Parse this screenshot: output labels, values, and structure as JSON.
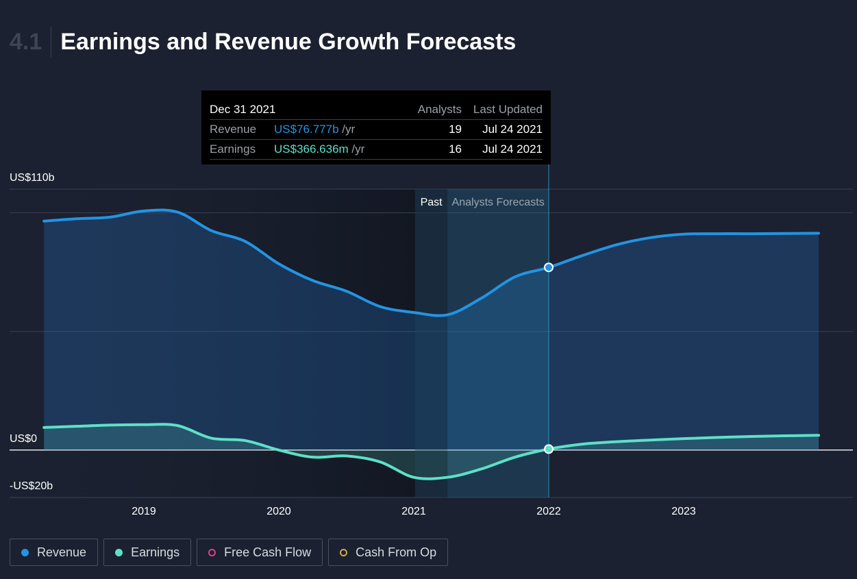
{
  "header": {
    "section_number": "4.1",
    "title": "Earnings and Revenue Growth Forecasts"
  },
  "tooltip": {
    "date": "Dec 31 2021",
    "col_analysts": "Analysts",
    "col_updated": "Last Updated",
    "rows": [
      {
        "label": "Revenue",
        "value": "US$76.777b",
        "unit": "/yr",
        "analysts": "19",
        "updated": "Jul 24 2021",
        "color": "#2394e3"
      },
      {
        "label": "Earnings",
        "value": "US$366.636m",
        "unit": "/yr",
        "analysts": "16",
        "updated": "Jul 24 2021",
        "color": "#5ee0c8"
      }
    ]
  },
  "period_labels": {
    "past": "Past",
    "forecast": "Analysts Forecasts"
  },
  "legend": [
    {
      "label": "Revenue",
      "color": "#2394e3",
      "filled": true
    },
    {
      "label": "Earnings",
      "color": "#5ee0c8",
      "filled": true
    },
    {
      "label": "Free Cash Flow",
      "color": "#d9418e",
      "filled": false
    },
    {
      "label": "Cash From Op",
      "color": "#d6a84a",
      "filled": false
    }
  ],
  "chart_data": {
    "type": "area",
    "y_unit": "US$ billions",
    "ylim": [
      -20,
      110
    ],
    "y_tick_labels": [
      {
        "value": 110,
        "label": "US$110b"
      },
      {
        "value": 0,
        "label": "US$0"
      },
      {
        "value": -20,
        "label": "-US$20b"
      }
    ],
    "x_tick_labels": [
      "2019",
      "2020",
      "2021",
      "2022",
      "2023"
    ],
    "xlim": [
      2018.25,
      2024.25
    ],
    "past_end": 2021.25,
    "highlight_x": 2022.0,
    "series": [
      {
        "name": "Revenue",
        "color": "#2394e3",
        "points": [
          [
            2018.26,
            96.5
          ],
          [
            2018.5,
            97.5
          ],
          [
            2018.75,
            98.2
          ],
          [
            2019.0,
            100.8
          ],
          [
            2019.25,
            100.3
          ],
          [
            2019.5,
            92.5
          ],
          [
            2019.75,
            88.0
          ],
          [
            2020.0,
            78.5
          ],
          [
            2020.25,
            71.5
          ],
          [
            2020.5,
            67.0
          ],
          [
            2020.75,
            60.5
          ],
          [
            2021.0,
            58.0
          ],
          [
            2021.25,
            57.0
          ],
          [
            2021.5,
            64.0
          ],
          [
            2021.75,
            73.0
          ],
          [
            2022.0,
            77.0
          ],
          [
            2022.25,
            82.0
          ],
          [
            2022.5,
            86.5
          ],
          [
            2022.75,
            89.5
          ],
          [
            2023.0,
            91.0
          ],
          [
            2023.25,
            91.2
          ],
          [
            2023.5,
            91.2
          ],
          [
            2023.75,
            91.3
          ],
          [
            2024.0,
            91.4
          ]
        ]
      },
      {
        "name": "Earnings",
        "color": "#5ee0c8",
        "points": [
          [
            2018.26,
            9.5
          ],
          [
            2018.5,
            10.0
          ],
          [
            2018.75,
            10.5
          ],
          [
            2019.0,
            10.7
          ],
          [
            2019.25,
            10.3
          ],
          [
            2019.5,
            5.0
          ],
          [
            2019.75,
            4.0
          ],
          [
            2020.0,
            0.0
          ],
          [
            2020.25,
            -3.0
          ],
          [
            2020.5,
            -2.5
          ],
          [
            2020.75,
            -5.0
          ],
          [
            2021.0,
            -11.5
          ],
          [
            2021.25,
            -11.5
          ],
          [
            2021.5,
            -8.0
          ],
          [
            2021.75,
            -3.0
          ],
          [
            2022.0,
            0.4
          ],
          [
            2022.25,
            2.5
          ],
          [
            2022.5,
            3.5
          ],
          [
            2022.75,
            4.2
          ],
          [
            2023.0,
            4.8
          ],
          [
            2023.25,
            5.3
          ],
          [
            2023.5,
            5.7
          ],
          [
            2023.75,
            6.0
          ],
          [
            2024.0,
            6.2
          ]
        ]
      }
    ]
  }
}
